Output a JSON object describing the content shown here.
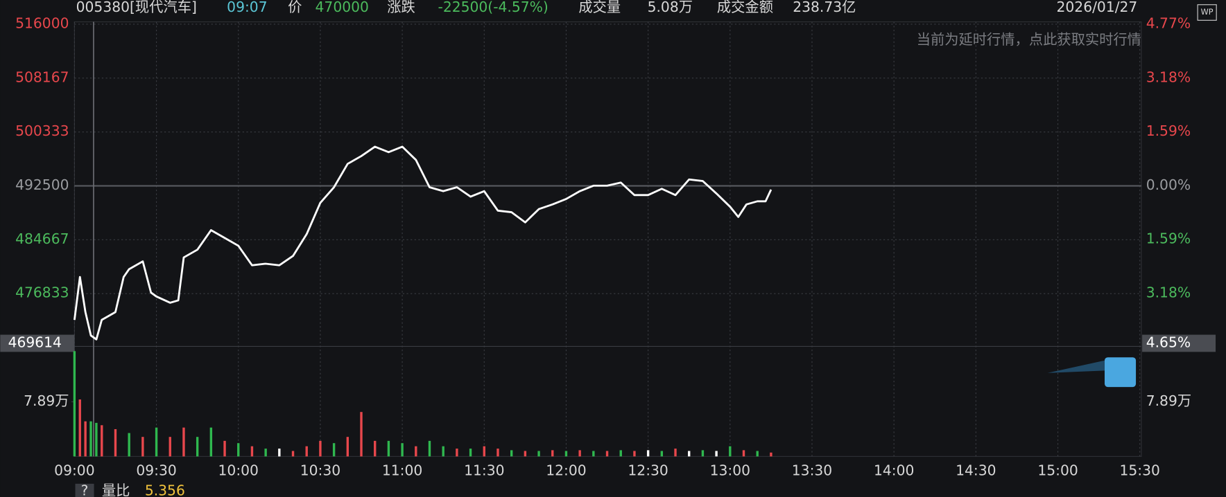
{
  "header": {
    "stock": "005380[现代汽车]",
    "time": "09:07",
    "price_label": "价",
    "price": "470000",
    "change_label": "涨跌",
    "change": "-22500(-4.57%)",
    "volume_label": "成交量",
    "volume": "5.08万",
    "amount_label": "成交金额",
    "amount": "238.73亿",
    "date": "2026/01/27",
    "notice": "当前为延时行情，点此获取实时行情",
    "wp": "WP"
  },
  "footer": {
    "help": "?",
    "ratio_label": "量比",
    "ratio": "5.356"
  },
  "chart_data": [
    {
      "type": "line",
      "base_price": 492500,
      "xlim": [
        "09:00",
        "15:30"
      ],
      "xticks": [
        "09:00",
        "09:30",
        "10:00",
        "10:30",
        "11:00",
        "11:30",
        "12:00",
        "12:30",
        "13:00",
        "13:30",
        "14:00",
        "14:30",
        "15:00",
        "15:30"
      ],
      "ylim": [
        469614,
        516000
      ],
      "yticks": [
        516000,
        508167,
        500333,
        492500,
        484667,
        476833,
        469614
      ],
      "y2lim": [
        -4.65,
        4.77
      ],
      "y2ticks": [
        {
          "value": 4.77,
          "label": "4.77%"
        },
        {
          "value": 3.18,
          "label": "3.18%"
        },
        {
          "value": 1.59,
          "label": "1.59%"
        },
        {
          "value": 0,
          "label": "0.00%"
        },
        {
          "value": -1.59,
          "label": "1.59%"
        },
        {
          "value": -3.18,
          "label": "3.18%"
        },
        {
          "value": -4.65,
          "label": "4.65%"
        }
      ],
      "grid": true,
      "cursor": "09:07",
      "series": [
        {
          "color": "#ffffff",
          "x": [
            "09:00",
            "09:02",
            "09:04",
            "09:06",
            "09:08",
            "09:10",
            "09:15",
            "09:18",
            "09:20",
            "09:25",
            "09:28",
            "09:30",
            "09:35",
            "09:38",
            "09:40",
            "09:45",
            "09:50",
            "09:55",
            "10:00",
            "10:05",
            "10:10",
            "10:15",
            "10:20",
            "10:25",
            "10:30",
            "10:35",
            "10:40",
            "10:45",
            "10:50",
            "10:55",
            "11:00",
            "11:05",
            "11:10",
            "11:15",
            "11:20",
            "11:25",
            "11:30",
            "11:35",
            "11:40",
            "11:45",
            "11:50",
            "11:55",
            "12:00",
            "12:05",
            "12:10",
            "12:15",
            "12:20",
            "12:25",
            "12:30",
            "12:35",
            "12:40",
            "12:45",
            "12:50",
            "12:55",
            "13:00",
            "13:03",
            "13:06",
            "13:10",
            "13:13",
            "13:15"
          ],
          "values": [
            473017,
            479256,
            474152,
            470750,
            470183,
            473017,
            474152,
            479256,
            480390,
            481524,
            476988,
            476421,
            475514,
            475854,
            482091,
            483225,
            486060,
            484926,
            483792,
            480957,
            481184,
            480957,
            482318,
            485493,
            490030,
            492298,
            495700,
            496834,
            498195,
            497401,
            498195,
            496267,
            492298,
            491731,
            492298,
            490937,
            491731,
            488896,
            488669,
            487195,
            489123,
            489803,
            490597,
            491731,
            492525,
            492525,
            492979,
            491164,
            491164,
            492071,
            491164,
            493432,
            493206,
            491390,
            489462,
            487988,
            489803,
            490257,
            490257,
            491957
          ]
        }
      ]
    },
    {
      "type": "bar",
      "xlim": [
        "09:00",
        "15:30"
      ],
      "ylim": [
        0,
        15.44
      ],
      "yticks": [
        {
          "value": 7.89,
          "label": "7.89万"
        }
      ],
      "x": [
        "09:00",
        "09:02",
        "09:04",
        "09:06",
        "09:08",
        "09:10",
        "09:15",
        "09:20",
        "09:25",
        "09:30",
        "09:35",
        "09:40",
        "09:45",
        "09:50",
        "09:55",
        "10:00",
        "10:05",
        "10:10",
        "10:15",
        "10:20",
        "10:25",
        "10:30",
        "10:35",
        "10:40",
        "10:45",
        "10:50",
        "10:55",
        "11:00",
        "11:05",
        "11:10",
        "11:15",
        "11:20",
        "11:25",
        "11:30",
        "11:35",
        "11:40",
        "11:45",
        "11:50",
        "11:55",
        "12:00",
        "12:05",
        "12:10",
        "12:15",
        "12:20",
        "12:25",
        "12:30",
        "12:35",
        "12:40",
        "12:45",
        "12:50",
        "12:55",
        "13:00",
        "13:05",
        "13:10",
        "13:15"
      ],
      "values": [
        15.21,
        8.23,
        5.07,
        5.07,
        4.85,
        4.51,
        3.94,
        3.38,
        2.82,
        4.17,
        2.82,
        4.17,
        2.82,
        4.17,
        2.25,
        1.92,
        1.47,
        1.13,
        1.13,
        0.79,
        1.47,
        2.25,
        1.92,
        2.82,
        6.42,
        2.25,
        2.25,
        1.92,
        1.47,
        2.25,
        1.47,
        1.13,
        1.13,
        1.47,
        1.13,
        0.9,
        0.79,
        0.79,
        0.9,
        0.79,
        0.9,
        0.79,
        0.79,
        0.9,
        0.79,
        0.9,
        0.79,
        1.13,
        0.79,
        0.9,
        0.79,
        1.47,
        0.9,
        0.79,
        0.56
      ],
      "colors": [
        "#2fb84f",
        "#e8474c",
        "#e8474c",
        "#2fb84f",
        "#2fb84f",
        "#e8474c",
        "#e8474c",
        "#2fb84f",
        "#e8474c",
        "#2fb84f",
        "#e8474c",
        "#e8474c",
        "#2fb84f",
        "#2fb84f",
        "#e8474c",
        "#2fb84f",
        "#e8474c",
        "#2fb84f",
        "#ffffff",
        "#e8474c",
        "#e8474c",
        "#e8474c",
        "#2fb84f",
        "#e8474c",
        "#e8474c",
        "#e8474c",
        "#2fb84f",
        "#2fb84f",
        "#e8474c",
        "#2fb84f",
        "#2fb84f",
        "#e8474c",
        "#2fb84f",
        "#e8474c",
        "#e8474c",
        "#2fb84f",
        "#e8474c",
        "#2fb84f",
        "#e8474c",
        "#2fb84f",
        "#e8474c",
        "#2fb84f",
        "#e8474c",
        "#2fb84f",
        "#e8474c",
        "#ffffff",
        "#2fb84f",
        "#e8474c",
        "#ffffff",
        "#2fb84f",
        "#ffffff",
        "#2fb84f",
        "#e8474c",
        "#2fb84f",
        "#e8474c"
      ]
    }
  ]
}
